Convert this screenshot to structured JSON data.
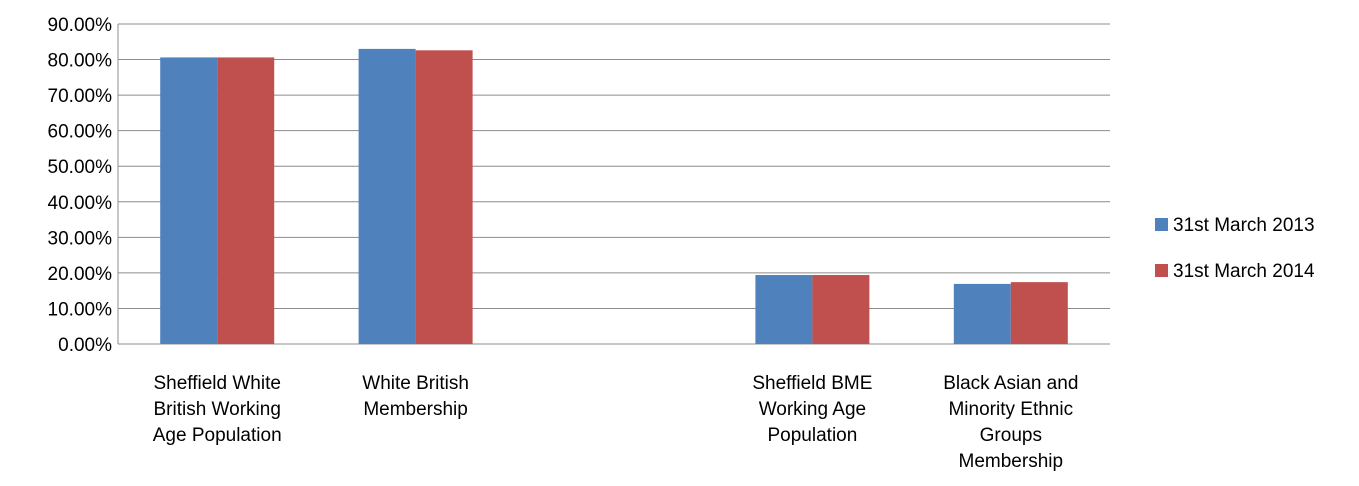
{
  "chart_data": {
    "type": "bar",
    "title": "",
    "xlabel": "",
    "ylabel": "",
    "ylim": [
      0,
      90
    ],
    "yticks": [
      "0.00%",
      "10.00%",
      "20.00%",
      "30.00%",
      "40.00%",
      "50.00%",
      "60.00%",
      "70.00%",
      "80.00%",
      "90.00%"
    ],
    "grid": true,
    "legend_position": "right",
    "categories": [
      [
        "Sheffield White",
        "British Working",
        "Age Population"
      ],
      [
        "White British",
        "Membership"
      ],
      [],
      [
        "Sheffield BME",
        "Working Age",
        "Population"
      ],
      [
        "Black Asian and",
        "Minority Ethnic",
        "Groups",
        "Membership"
      ]
    ],
    "series": [
      {
        "name": "31st March 2013",
        "color": "#4f81bd",
        "values": [
          80.6,
          83.0,
          null,
          19.4,
          16.9
        ]
      },
      {
        "name": "31st March 2014",
        "color": "#c0504d",
        "values": [
          80.6,
          82.6,
          null,
          19.4,
          17.4
        ]
      }
    ]
  }
}
